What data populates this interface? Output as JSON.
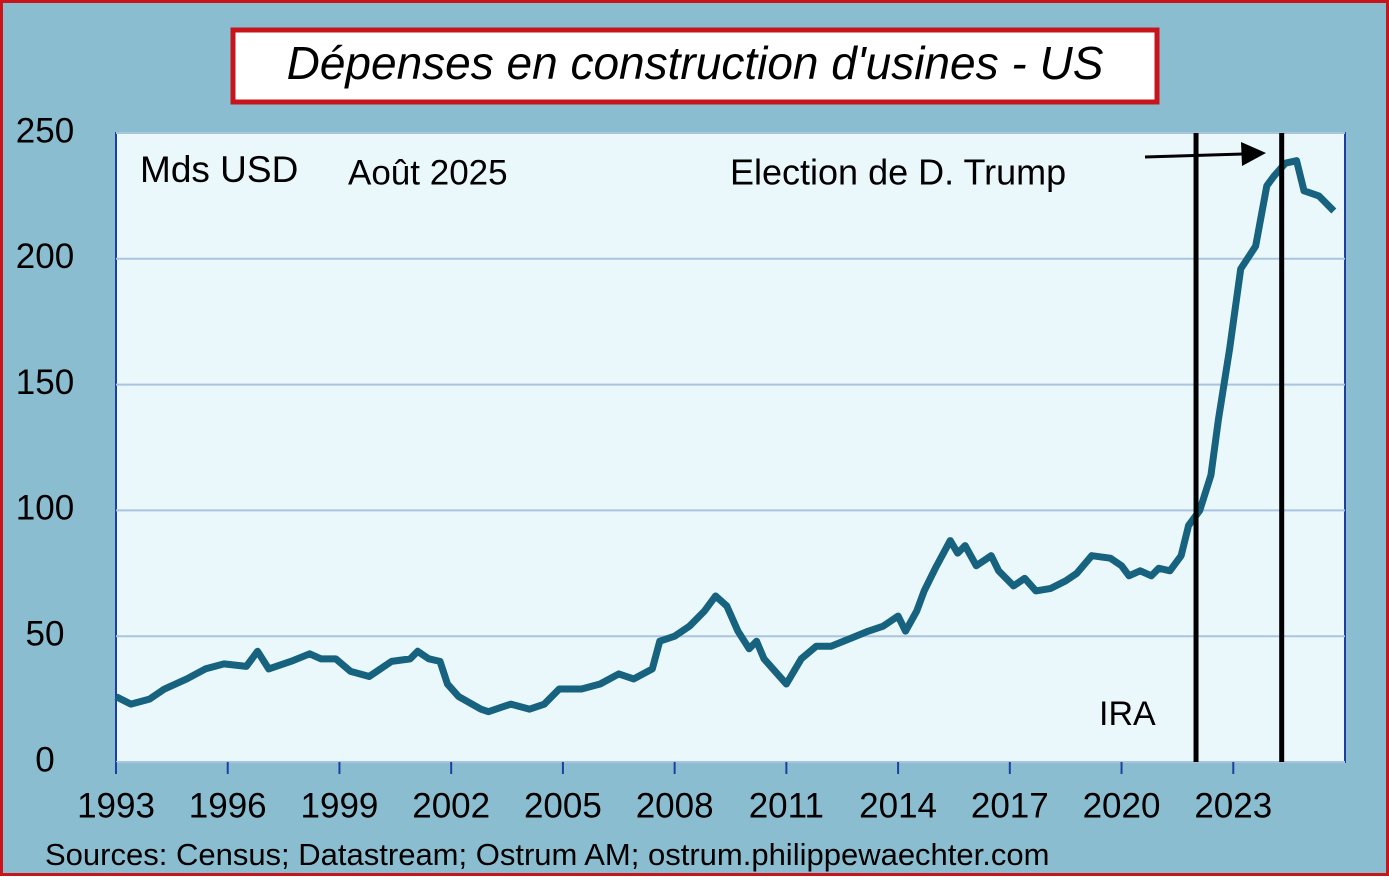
{
  "chart_data": {
    "type": "line",
    "title": "Dépenses en construction d'usines - US",
    "unit_label": "Mds USD",
    "date_label": "Août 2025",
    "annotations": [
      "Election de D. Trump",
      "IRA"
    ],
    "source": "Sources: Census; Datastream; Ostrum AM; ostrum.philippewaechter.com",
    "vlines": [
      2022.0,
      2024.3
    ],
    "x": [
      1993.0,
      1993.4,
      1993.9,
      1994.3,
      1994.9,
      1995.4,
      1995.9,
      1996.5,
      1996.8,
      1997.1,
      1997.7,
      1998.2,
      1998.5,
      1998.9,
      1999.3,
      1999.8,
      2000.4,
      2000.9,
      2001.1,
      2001.4,
      2001.7,
      2001.9,
      2002.2,
      2002.8,
      2003.0,
      2003.6,
      2004.1,
      2004.5,
      2004.9,
      2005.5,
      2006.0,
      2006.5,
      2006.9,
      2007.4,
      2007.6,
      2008.0,
      2008.4,
      2008.8,
      2009.1,
      2009.4,
      2009.7,
      2010.0,
      2010.2,
      2010.4,
      2011.0,
      2011.4,
      2011.8,
      2012.2,
      2012.7,
      2013.2,
      2013.6,
      2014.0,
      2014.2,
      2014.5,
      2014.7,
      2015.0,
      2015.4,
      2015.6,
      2015.8,
      2016.1,
      2016.5,
      2016.7,
      2017.1,
      2017.4,
      2017.7,
      2018.1,
      2018.5,
      2018.8,
      2019.2,
      2019.7,
      2020.0,
      2020.2,
      2020.5,
      2020.8,
      2021.0,
      2021.3,
      2021.6,
      2021.8,
      2022.1,
      2022.4,
      2022.6,
      2022.9,
      2023.2,
      2023.6,
      2023.9,
      2024.1,
      2024.4,
      2024.7,
      2024.9,
      2025.3,
      2025.7
    ],
    "series": [
      {
        "name": "Dépenses",
        "color": "#16627f",
        "values": [
          26,
          23,
          25,
          29,
          33,
          37,
          39,
          38,
          44,
          37,
          40,
          43,
          41,
          41,
          36,
          34,
          40,
          41,
          44,
          41,
          40,
          31,
          26,
          21,
          20,
          23,
          21,
          23,
          29,
          29,
          31,
          35,
          33,
          37,
          48,
          50,
          54,
          60,
          66,
          62,
          52,
          45,
          48,
          41,
          31,
          41,
          46,
          46,
          49,
          52,
          54,
          58,
          52,
          60,
          68,
          77,
          88,
          83,
          86,
          78,
          82,
          76,
          70,
          73,
          68,
          69,
          72,
          75,
          82,
          81,
          78,
          74,
          76,
          74,
          77,
          76,
          82,
          94,
          100,
          114,
          136,
          164,
          196,
          205,
          229,
          233,
          238,
          239,
          227,
          225,
          219
        ]
      }
    ],
    "xlim": [
      1993,
      2026
    ],
    "xticks": [
      1993,
      1996,
      1999,
      2002,
      2005,
      2008,
      2011,
      2014,
      2017,
      2020,
      2023
    ],
    "ylim": [
      0,
      250
    ],
    "yticks": [
      0,
      50,
      100,
      150,
      200,
      250
    ],
    "grid": true
  }
}
